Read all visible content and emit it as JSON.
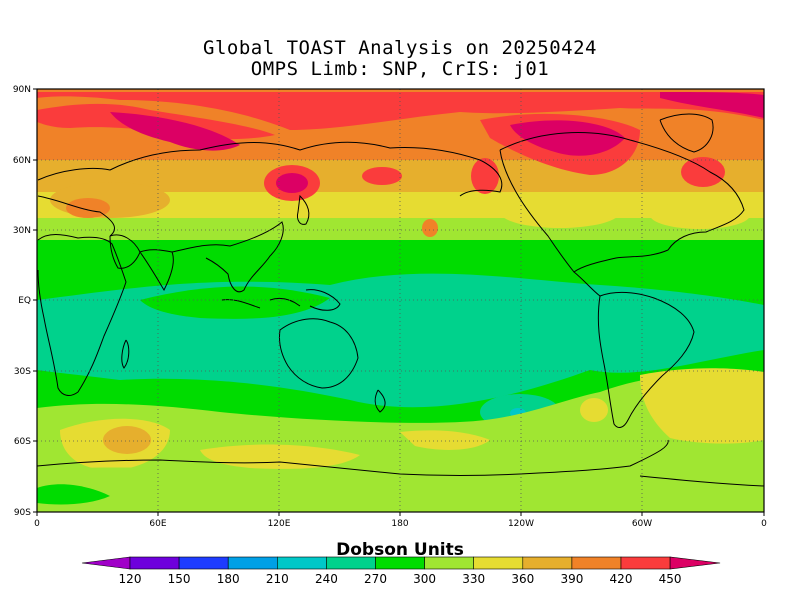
{
  "title": {
    "line1": "Global TOAST Analysis on 20250424",
    "line2": "OMPS Limb: SNP,  CrIS: j01"
  },
  "map": {
    "lat_ticks": [
      "90N",
      "60N",
      "30N",
      "EQ",
      "30S",
      "60S",
      "90S"
    ],
    "lon_ticks": [
      "0",
      "60E",
      "120E",
      "180",
      "120W",
      "60W",
      "0"
    ]
  },
  "colorbar": {
    "label": "Dobson Units",
    "levels": [
      "120",
      "150",
      "180",
      "210",
      "240",
      "270",
      "300",
      "330",
      "360",
      "390",
      "420",
      "450"
    ],
    "colors": [
      "#a000c8",
      "#6e00dc",
      "#1e3cff",
      "#00a0e6",
      "#00c8c8",
      "#00d28c",
      "#00dc00",
      "#a0e632",
      "#e6dc32",
      "#e6af2d",
      "#f08228",
      "#fa3c3c",
      "#dc0064"
    ]
  }
}
